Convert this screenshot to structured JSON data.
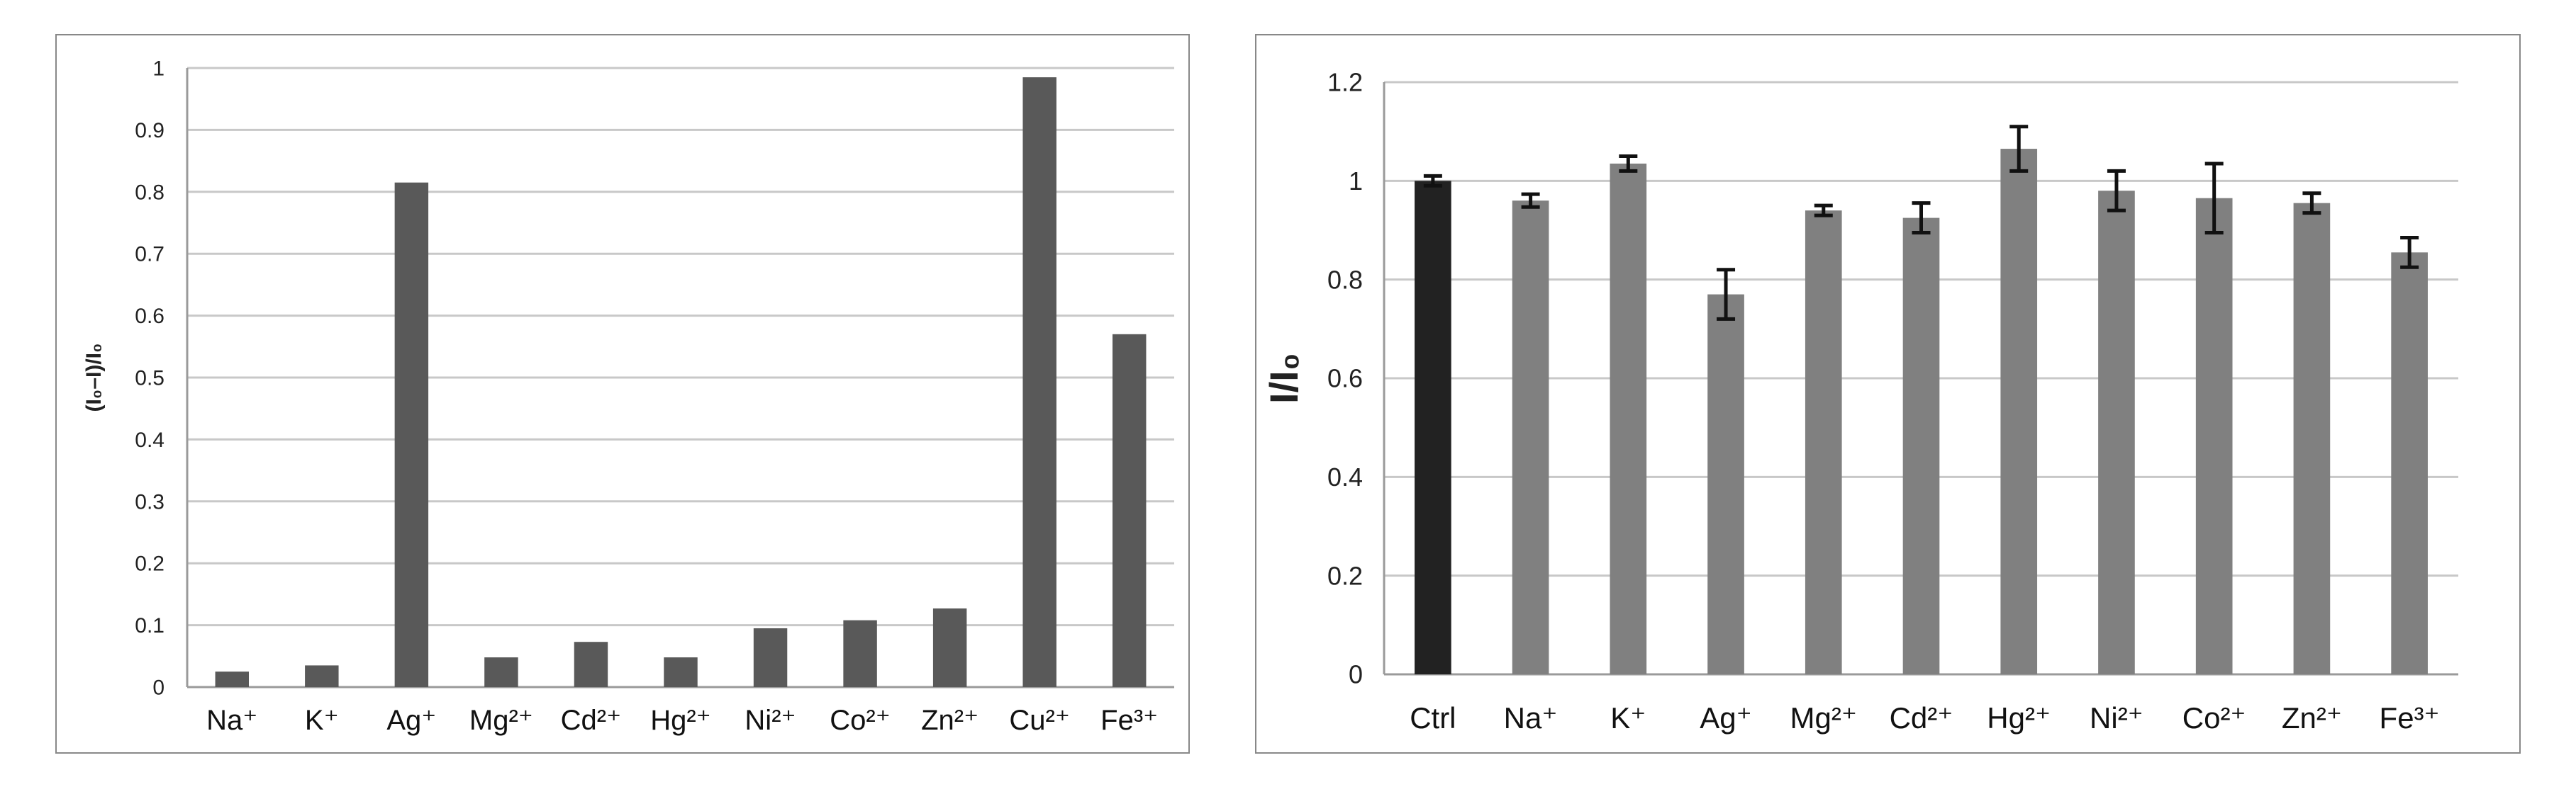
{
  "chart_data": [
    {
      "type": "bar",
      "title": "",
      "xlabel": "",
      "ylabel": "(I₀–I)/I₀",
      "ylim": [
        0,
        1
      ],
      "yticks": [
        0,
        0.1,
        0.2,
        0.3,
        0.4,
        0.5,
        0.6,
        0.7,
        0.8,
        0.9,
        1
      ],
      "ytick_labels": [
        "0",
        "0.1",
        "0.2",
        "0.3",
        "0.4",
        "0.5",
        "0.6",
        "0.7",
        "0.8",
        "0.9",
        "1"
      ],
      "grid": true,
      "legend": "none",
      "categories": [
        "Na⁺",
        "K⁺",
        "Ag⁺",
        "Mg²⁺",
        "Cd²⁺",
        "Hg²⁺",
        "Ni²⁺",
        "Co²⁺",
        "Zn²⁺",
        "Cu²⁺",
        "Fe³⁺"
      ],
      "values": [
        0.025,
        0.035,
        0.815,
        0.048,
        0.073,
        0.048,
        0.095,
        0.108,
        0.127,
        0.985,
        0.57
      ],
      "bar_color": "#595959"
    },
    {
      "type": "bar",
      "title": "",
      "xlabel": "",
      "ylabel": "I/I₀",
      "ylim": [
        0,
        1.2
      ],
      "yticks": [
        0,
        0.2,
        0.4,
        0.6,
        0.8,
        1,
        1.2
      ],
      "ytick_labels": [
        "0",
        "0.2",
        "0.4",
        "0.6",
        "0.8",
        "1",
        "1.2"
      ],
      "grid": true,
      "legend": "none",
      "categories": [
        "Ctrl",
        "Na⁺",
        "K⁺",
        "Ag⁺",
        "Mg²⁺",
        "Cd²⁺",
        "Hg²⁺",
        "Ni²⁺",
        "Co²⁺",
        "Zn²⁺",
        "Fe³⁺"
      ],
      "values": [
        1.0,
        0.96,
        1.035,
        0.77,
        0.94,
        0.925,
        1.065,
        0.98,
        0.965,
        0.955,
        0.855
      ],
      "errors": [
        0.01,
        0.013,
        0.015,
        0.05,
        0.01,
        0.03,
        0.045,
        0.04,
        0.07,
        0.02,
        0.03
      ],
      "bar_colors": [
        "#222222",
        "#808080",
        "#808080",
        "#808080",
        "#808080",
        "#808080",
        "#808080",
        "#808080",
        "#808080",
        "#808080",
        "#808080"
      ]
    }
  ]
}
